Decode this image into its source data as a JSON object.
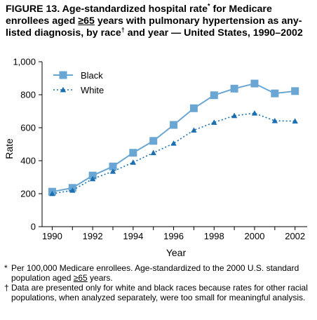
{
  "title": {
    "part1": "FIGURE 13. Age-standardized hospital rate",
    "star": "*",
    "part2": " for Medicare enrollees aged ",
    "ge65": "≥65",
    "part3": " years with pulmonary hypertension as any-listed diagnosis, by race",
    "dagger": "†",
    "part4": " and year — United States, 1990–2002"
  },
  "footnotes": {
    "star_mark": "*",
    "star_text_a": "Per 100,000 Medicare enrollees. Age-standardized to the 2000 U.S. standard population aged ",
    "star_ge65": "≥65",
    "star_text_b": " years.",
    "dagger_mark": "†",
    "dagger_text": "Data are presented only for white and black races because rates for other racial populations, when analyzed separately, were too small for meaningful analysis."
  },
  "colors": {
    "black_series": "#6aa6d3",
    "white_series": "#1a6fb0",
    "axis": "#000000"
  },
  "chart_data": {
    "type": "line",
    "xlabel": "Year",
    "ylabel": "Rate",
    "xlim": [
      1989.5,
      2002.6
    ],
    "ylim": [
      0,
      1000
    ],
    "x_ticks": [
      1990,
      1992,
      1994,
      1996,
      1998,
      2000,
      2002
    ],
    "x_tick_labels": [
      "1990",
      "1992",
      "1994",
      "1996",
      "1998",
      "2000",
      "2002"
    ],
    "y_ticks": [
      0,
      200,
      400,
      600,
      800,
      1000
    ],
    "y_tick_labels": [
      "0",
      "200",
      "400",
      "600",
      "800",
      "1,000"
    ],
    "legend_position": "top-left",
    "grid": false,
    "x": [
      1990,
      1991,
      1992,
      1993,
      1994,
      1995,
      1996,
      1997,
      1998,
      1999,
      2000,
      2001,
      2002
    ],
    "series": [
      {
        "name": "Black",
        "marker": "square",
        "line": "solid",
        "color": "#6aa6d3",
        "values": [
          212,
          235,
          310,
          365,
          448,
          520,
          617,
          718,
          797,
          837,
          868,
          808,
          822
        ]
      },
      {
        "name": "White",
        "marker": "triangle",
        "line": "dotted",
        "color": "#1a6fb0",
        "values": [
          200,
          220,
          290,
          335,
          390,
          448,
          505,
          585,
          632,
          673,
          688,
          642,
          640
        ]
      }
    ]
  }
}
